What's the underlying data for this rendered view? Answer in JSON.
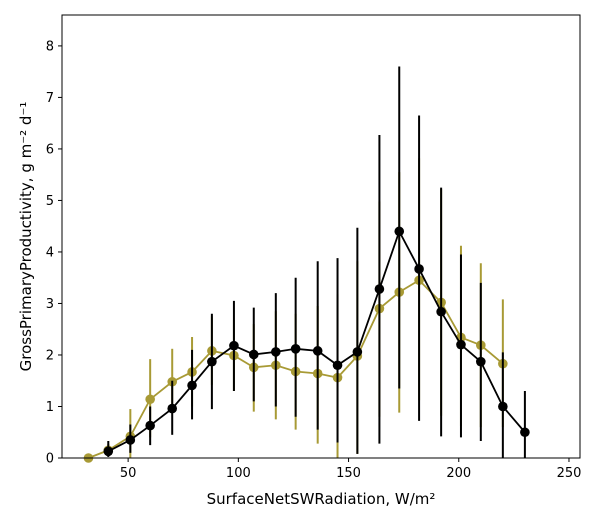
{
  "chart_data": {
    "type": "line",
    "xlabel": "SurfaceNetSWRadiation,  W/m²",
    "ylabel": "GrossPrimaryProductivity,  g m⁻² d⁻¹",
    "xlim": [
      20,
      255
    ],
    "ylim": [
      0,
      8.6
    ],
    "xticks": [
      50,
      100,
      150,
      200,
      250
    ],
    "yticks": [
      0,
      1,
      2,
      3,
      4,
      5,
      6,
      7,
      8
    ],
    "grid": false,
    "legend": "none",
    "series": [
      {
        "color": "#a89a35",
        "x": [
          32,
          41,
          51,
          60,
          70,
          79,
          88,
          98,
          107,
          117,
          126,
          136,
          145,
          154,
          164,
          173,
          182,
          192,
          201,
          210,
          220
        ],
        "y": [
          0.0,
          0.15,
          0.42,
          1.14,
          1.48,
          1.67,
          2.08,
          1.99,
          1.76,
          1.8,
          1.68,
          1.64,
          1.56,
          1.98,
          2.9,
          3.22,
          3.45,
          3.02,
          2.34,
          2.19,
          1.83
        ],
        "err_low": [
          0.0,
          0.05,
          0.0,
          0.4,
          0.9,
          1.0,
          1.42,
          1.3,
          0.9,
          0.75,
          0.55,
          0.28,
          0.0,
          0.08,
          0.8,
          0.88,
          1.12,
          0.82,
          0.62,
          0.6,
          0.6
        ],
        "err_high": [
          0.0,
          0.27,
          0.95,
          1.92,
          2.12,
          2.35,
          2.75,
          2.68,
          2.6,
          2.85,
          2.8,
          2.95,
          3.18,
          3.82,
          4.98,
          5.55,
          5.82,
          5.22,
          4.12,
          3.78,
          3.08
        ]
      },
      {
        "color": "#000000",
        "x": [
          41,
          51,
          60,
          70,
          79,
          88,
          98,
          107,
          117,
          126,
          136,
          145,
          154,
          164,
          173,
          182,
          192,
          201,
          210,
          220,
          230
        ],
        "y": [
          0.13,
          0.35,
          0.63,
          0.96,
          1.41,
          1.87,
          2.18,
          2.01,
          2.06,
          2.12,
          2.08,
          1.8,
          2.06,
          3.28,
          4.4,
          3.67,
          2.84,
          2.2,
          1.87,
          1.0,
          0.5
        ],
        "err_low": [
          0.02,
          0.1,
          0.25,
          0.45,
          0.75,
          0.95,
          1.3,
          1.1,
          1.0,
          0.8,
          0.55,
          0.3,
          0.08,
          0.28,
          1.35,
          0.72,
          0.42,
          0.4,
          0.33,
          0.0,
          0.0
        ],
        "err_high": [
          0.33,
          0.65,
          1.0,
          1.5,
          2.1,
          2.8,
          3.05,
          2.92,
          3.2,
          3.5,
          3.82,
          3.88,
          4.47,
          6.27,
          7.6,
          6.65,
          5.25,
          3.95,
          3.4,
          2.05,
          1.3
        ]
      }
    ]
  }
}
